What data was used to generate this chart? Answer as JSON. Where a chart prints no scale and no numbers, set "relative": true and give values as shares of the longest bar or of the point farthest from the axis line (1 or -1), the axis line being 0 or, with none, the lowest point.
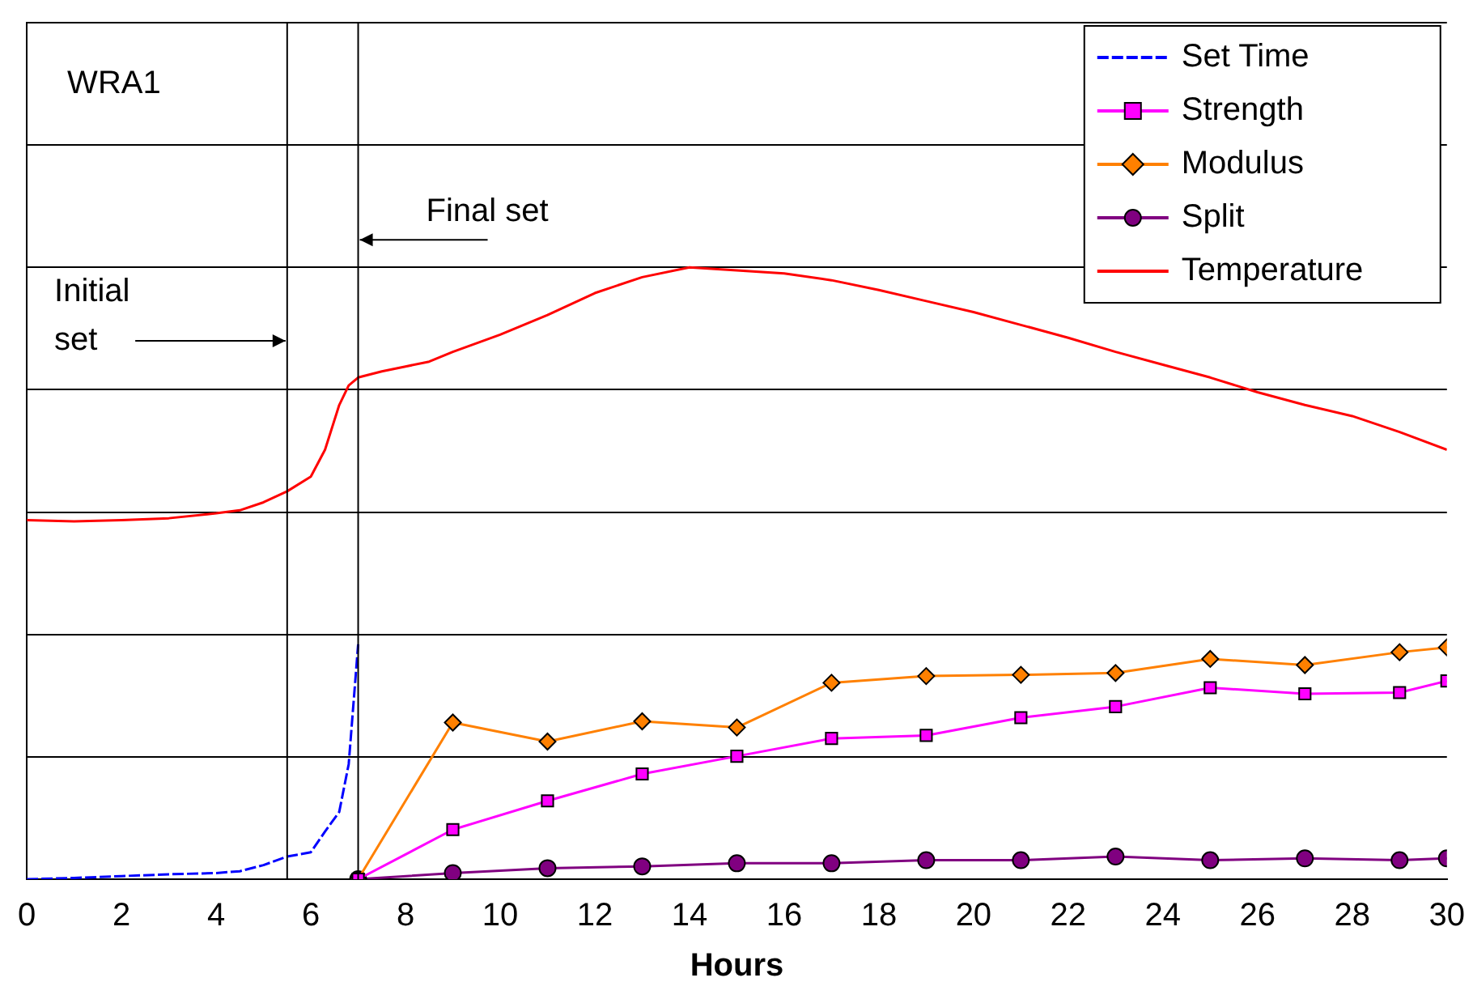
{
  "chart_data": {
    "type": "line",
    "relative": true,
    "xlabel": "Hours",
    "xlim": [
      0,
      30
    ],
    "xticks": [
      0,
      2,
      4,
      6,
      8,
      10,
      12,
      14,
      16,
      18,
      20,
      22,
      24,
      26,
      28,
      30
    ],
    "grid": "y",
    "legend": "top right",
    "annotations": [
      "WRA1",
      {
        "text": "Initial set",
        "x": 5.5,
        "y": 0.88
      },
      {
        "text": "Final set",
        "x": 7,
        "y": 1.045
      }
    ],
    "ref_lines": [
      {
        "axis": "x",
        "value": 5.5,
        "color": "#000000"
      },
      {
        "axis": "x",
        "value": 7,
        "color": "#000000"
      }
    ],
    "series": [
      {
        "name": "Set Time",
        "color": "#0000ff",
        "marker": "none",
        "line_style": "dashed",
        "x": [
          0,
          1,
          2,
          3,
          4,
          4.5,
          5,
          5.5,
          6,
          6.3,
          6.6,
          6.8,
          7
        ],
        "values": [
          0,
          0.002,
          0.005,
          0.008,
          0.01,
          0.013,
          0.023,
          0.037,
          0.044,
          0.078,
          0.11,
          0.188,
          0.384
        ]
      },
      {
        "name": "Strength",
        "color": "#ff00ff",
        "marker": "square",
        "line_style": "solid",
        "x": [
          7,
          9,
          11,
          13,
          15,
          17,
          19,
          21,
          23,
          25,
          27,
          29,
          30
        ],
        "values": [
          0,
          0.081,
          0.128,
          0.172,
          0.201,
          0.23,
          0.235,
          0.264,
          0.282,
          0.313,
          0.303,
          0.305,
          0.324
        ]
      },
      {
        "name": "Modulus",
        "color": "#ff8000",
        "marker": "diamond",
        "line_style": "solid",
        "x": [
          7,
          9,
          11,
          13,
          15,
          17,
          19,
          21,
          23,
          25,
          27,
          29,
          30
        ],
        "values": [
          0,
          0.256,
          0.225,
          0.258,
          0.248,
          0.321,
          0.332,
          0.334,
          0.337,
          0.36,
          0.35,
          0.371,
          0.379
        ]
      },
      {
        "name": "Split",
        "color": "#800080",
        "marker": "circle",
        "line_style": "solid",
        "x": [
          7,
          9,
          11,
          13,
          15,
          17,
          19,
          21,
          23,
          25,
          27,
          29,
          30
        ],
        "values": [
          0,
          0.01,
          0.018,
          0.021,
          0.026,
          0.026,
          0.031,
          0.031,
          0.037,
          0.031,
          0.034,
          0.031,
          0.034
        ]
      },
      {
        "name": "Temperature",
        "color": "#ff0000",
        "marker": "none",
        "line_style": "solid",
        "x": [
          0,
          1,
          2,
          3,
          4,
          4.5,
          5,
          5.5,
          6,
          6.3,
          6.6,
          6.8,
          7,
          7.5,
          8,
          8.5,
          9,
          10,
          11,
          12,
          13,
          14,
          15,
          16,
          17,
          18,
          19,
          20,
          21,
          22,
          23,
          24,
          25,
          26,
          27,
          28,
          29,
          30
        ],
        "values": [
          0.587,
          0.585,
          0.587,
          0.59,
          0.598,
          0.603,
          0.616,
          0.634,
          0.658,
          0.702,
          0.775,
          0.807,
          0.82,
          0.83,
          0.838,
          0.846,
          0.862,
          0.89,
          0.922,
          0.958,
          0.984,
          1,
          0.995,
          0.99,
          0.979,
          0.963,
          0.945,
          0.927,
          0.906,
          0.885,
          0.862,
          0.841,
          0.82,
          0.796,
          0.775,
          0.757,
          0.731,
          0.702
        ]
      }
    ]
  }
}
